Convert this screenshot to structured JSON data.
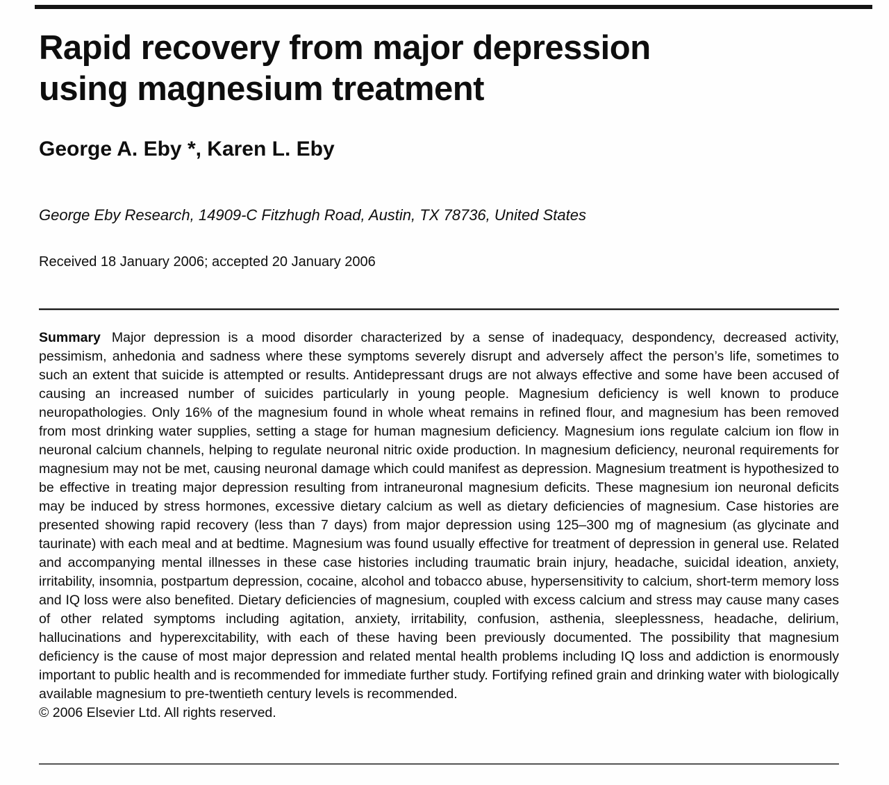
{
  "paper": {
    "title_line1": "Rapid recovery from major depression",
    "title_line2": "using magnesium treatment",
    "authors": "George A. Eby *, Karen L. Eby",
    "affiliation": "George Eby Research, 14909-C Fitzhugh Road, Austin, TX 78736, United States",
    "dates": "Received 18 January 2006; accepted 20 January 2006",
    "summary": {
      "label": "Summary",
      "text": "Major depression is a mood disorder characterized by a sense of inadequacy, despondency, decreased activity, pessimism, anhedonia and sadness where these symptoms severely disrupt and adversely affect the person’s life, sometimes to such an extent that suicide is attempted or results. Antidepressant drugs are not always effective and some have been accused of causing an increased number of suicides particularly in young people. Magnesium deficiency is well known to produce neuropathologies. Only 16% of the magnesium found in whole wheat remains in refined flour, and magnesium has been removed from most drinking water supplies, setting a stage for human magnesium deficiency. Magnesium ions regulate calcium ion flow in neuronal calcium channels, helping to regulate neuronal nitric oxide production. In magnesium deficiency, neuronal requirements for magnesium may not be met, causing neuronal damage which could manifest as depression. Magnesium treatment is hypothesized to be effective in treating major depression resulting from intraneuronal magnesium deficits. These magnesium ion neuronal deficits may be induced by stress hormones, excessive dietary calcium as well as dietary deficiencies of magnesium. Case histories are presented showing rapid recovery (less than 7 days) from major depression using 125–300 mg of magnesium (as glycinate and taurinate) with each meal and at bedtime. Magnesium was found usually effective for treatment of depression in general use. Related and accompanying mental illnesses in these case histories including traumatic brain injury, headache, suicidal ideation, anxiety, irritability, insomnia, postpartum depression, cocaine, alcohol and tobacco abuse, hypersensitivity to calcium, short-term memory loss and IQ loss were also benefited. Dietary deficiencies of magnesium, coupled with excess calcium and stress may cause many cases of other related symptoms including agitation, anxiety, irritability, confusion, asthenia, sleeplessness, headache, delirium, hallucinations and hyperexcitability, with each of these having been previously documented. The possibility that magnesium deficiency is the cause of most major depression and related mental health problems including IQ loss and addiction is enormously important to public health and is recommended for immediate further study. Fortifying refined grain and drinking water with biologically available magnesium to pre-twentieth century levels is recommended."
    },
    "copyright": "© 2006 Elsevier Ltd. All rights reserved."
  },
  "colors": {
    "text": "#0e0e0e",
    "rule": "#141414",
    "background": "#fefefe"
  }
}
